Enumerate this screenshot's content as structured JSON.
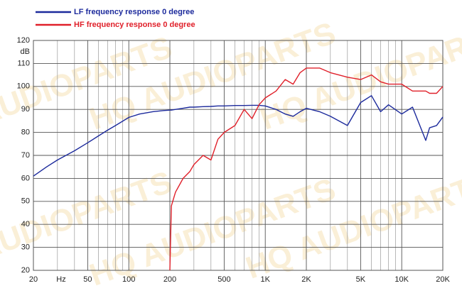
{
  "chart_data": {
    "type": "line",
    "watermark": "HQ AUDIOPARTS",
    "x_label": "Hz",
    "y_label": "dB",
    "log_x": true,
    "grid": true,
    "x": [
      20,
      25,
      30,
      40,
      50,
      60,
      70,
      80,
      100,
      120,
      150,
      180,
      200,
      205,
      220,
      250,
      280,
      300,
      350,
      400,
      450,
      500,
      600,
      700,
      800,
      900,
      1000,
      1200,
      1400,
      1600,
      1800,
      2000,
      2500,
      3000,
      4000,
      5000,
      6000,
      7000,
      8000,
      10000,
      12000,
      15000,
      16000,
      18000,
      20000
    ],
    "series": [
      {
        "name": "LF frequency response 0 degree",
        "color": "#1c2a9c",
        "values": [
          61,
          65,
          68,
          72,
          75.5,
          78.5,
          81,
          83,
          86.5,
          88,
          89,
          89.5,
          89.7,
          89.7,
          90,
          90.5,
          91,
          91,
          91.2,
          91.3,
          91.5,
          91.5,
          91.7,
          91.7,
          91.8,
          91.8,
          91.5,
          90,
          88,
          87,
          89,
          90.5,
          89,
          87,
          83,
          93,
          96,
          89,
          92,
          88,
          91,
          76.5,
          82,
          83,
          86.7
        ]
      },
      {
        "name": "HF frequency response 0 degree",
        "color": "#e0202a",
        "values": [
          null,
          null,
          null,
          null,
          null,
          null,
          null,
          null,
          null,
          null,
          null,
          null,
          20,
          48,
          54,
          60,
          63,
          66,
          70,
          68,
          77,
          80,
          83,
          90,
          86,
          92,
          95,
          98,
          103,
          101,
          106,
          108,
          108,
          106,
          104,
          103,
          105,
          102,
          101,
          101,
          98,
          98,
          97,
          97,
          100
        ]
      }
    ],
    "xlim": [
      20,
      20000
    ],
    "ylim": [
      20,
      120
    ],
    "xticks": [
      20,
      50,
      100,
      200,
      500,
      {
        "value": 1000,
        "label": "1K"
      },
      {
        "value": 2000,
        "label": "2K"
      },
      {
        "value": 5000,
        "label": "5K"
      },
      {
        "value": 10000,
        "label": "10K"
      },
      {
        "value": 20000,
        "label": "20K"
      }
    ],
    "xminorticks": [
      30,
      40,
      60,
      70,
      80,
      90,
      300,
      400,
      600,
      700,
      800,
      900,
      3000,
      4000,
      6000,
      7000,
      8000,
      9000
    ],
    "yticks": [
      20,
      30,
      40,
      50,
      60,
      70,
      80,
      90,
      100,
      110,
      120
    ]
  }
}
